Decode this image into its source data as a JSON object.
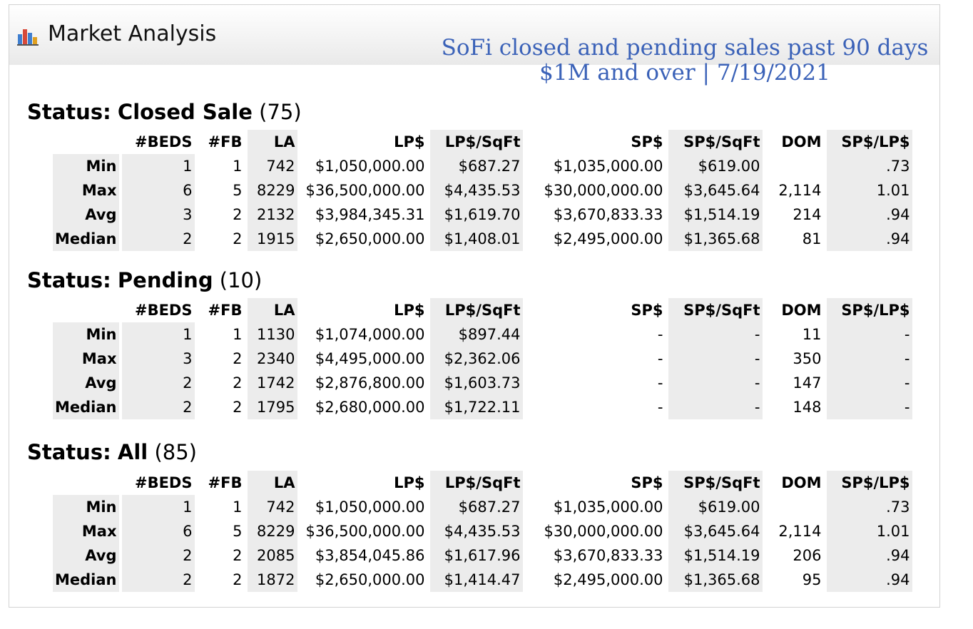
{
  "header": {
    "title": "Market Analysis",
    "icon": "bar-chart-icon",
    "overlay_line1": "SoFi closed and pending sales past 90 days",
    "overlay_line2": "$1M and over | 7/19/2021",
    "overlay_color": "#3b62b8"
  },
  "columns": [
    "#BEDS",
    "#FB",
    "LA",
    "LP$",
    "LP$/SqFt",
    "SP$",
    "SP$/SqFt",
    "DOM",
    "SP$/LP$"
  ],
  "sections": [
    {
      "label": "Status:",
      "name": "Closed Sale",
      "count": "(75)",
      "rows": [
        {
          "label": "Min",
          "cells": [
            "1",
            "1",
            "742",
            "$1,050,000.00",
            "$687.27",
            "$1,035,000.00",
            "$619.00",
            "",
            ".73"
          ]
        },
        {
          "label": "Max",
          "cells": [
            "6",
            "5",
            "8229",
            "$36,500,000.00",
            "$4,435.53",
            "$30,000,000.00",
            "$3,645.64",
            "2,114",
            "1.01"
          ]
        },
        {
          "label": "Avg",
          "cells": [
            "3",
            "2",
            "2132",
            "$3,984,345.31",
            "$1,619.70",
            "$3,670,833.33",
            "$1,514.19",
            "214",
            ".94"
          ]
        },
        {
          "label": "Median",
          "cells": [
            "2",
            "2",
            "1915",
            "$2,650,000.00",
            "$1,408.01",
            "$2,495,000.00",
            "$1,365.68",
            "81",
            ".94"
          ]
        }
      ]
    },
    {
      "label": "Status:",
      "name": "Pending",
      "count": "(10)",
      "rows": [
        {
          "label": "Min",
          "cells": [
            "1",
            "1",
            "1130",
            "$1,074,000.00",
            "$897.44",
            "-",
            "-",
            "11",
            "-"
          ]
        },
        {
          "label": "Max",
          "cells": [
            "3",
            "2",
            "2340",
            "$4,495,000.00",
            "$2,362.06",
            "-",
            "-",
            "350",
            "-"
          ]
        },
        {
          "label": "Avg",
          "cells": [
            "2",
            "2",
            "1742",
            "$2,876,800.00",
            "$1,603.73",
            "-",
            "-",
            "147",
            "-"
          ]
        },
        {
          "label": "Median",
          "cells": [
            "2",
            "2",
            "1795",
            "$2,680,000.00",
            "$1,722.11",
            "-",
            "-",
            "148",
            "-"
          ]
        }
      ]
    },
    {
      "label": "Status:",
      "name": "All",
      "count": "(85)",
      "rows": [
        {
          "label": "Min",
          "cells": [
            "1",
            "1",
            "742",
            "$1,050,000.00",
            "$687.27",
            "$1,035,000.00",
            "$619.00",
            "",
            ".73"
          ]
        },
        {
          "label": "Max",
          "cells": [
            "6",
            "5",
            "8229",
            "$36,500,000.00",
            "$4,435.53",
            "$30,000,000.00",
            "$3,645.64",
            "2,114",
            "1.01"
          ]
        },
        {
          "label": "Avg",
          "cells": [
            "2",
            "2",
            "2085",
            "$3,854,045.86",
            "$1,617.96",
            "$3,670,833.33",
            "$1,514.19",
            "206",
            ".94"
          ]
        },
        {
          "label": "Median",
          "cells": [
            "2",
            "2",
            "1872",
            "$2,650,000.00",
            "$1,414.47",
            "$2,495,000.00",
            "$1,365.68",
            "95",
            ".94"
          ]
        }
      ]
    }
  ]
}
